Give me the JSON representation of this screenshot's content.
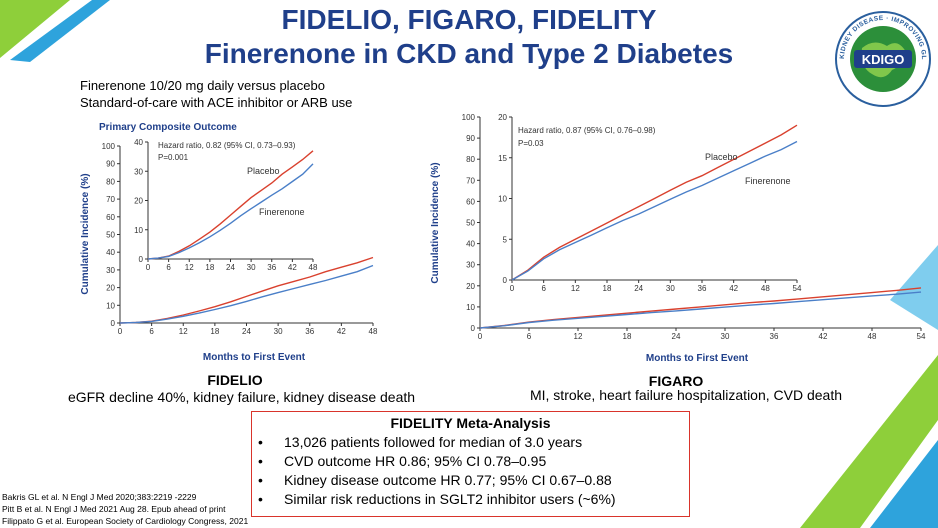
{
  "header": {
    "title_line1": "FIDELIO, FIGARO, FIDELITY",
    "title_line2": "Finerenone in CKD and Type 2 Diabetes",
    "intro_line1": "Finerenone 10/20 mg daily versus placebo",
    "intro_line2": "Standard-of-care with ACE inhibitor or ARB use"
  },
  "logo": {
    "text": "KDIGO",
    "ring_text": "KIDNEY DISEASE · IMPROVING GLOBAL OUTCOMES"
  },
  "colors": {
    "title": "#1f3f8a",
    "placebo": "#d9412e",
    "finerenone": "#4a7fc8",
    "box_border": "#d9342b",
    "deco_green": "#8ecf3a",
    "deco_blue": "#2ea3dc"
  },
  "fidelio": {
    "label": "FIDELIO",
    "description": "eGFR decline 40%, kidney failure, kidney disease death"
  },
  "figaro": {
    "label": "FIGARO",
    "description": "MI, stroke, heart failure hospitalization, CVD death"
  },
  "meta": {
    "title": "FIDELITY Meta-Analysis",
    "bullet_symbol": "•",
    "bullets": [
      "13,026 patients followed for median of 3.0 years",
      "CVD outcome HR 0.86; 95% CI 0.78–0.95",
      "Kidney disease outcome HR 0.77; 95% CI 0.67–0.88",
      "Similar risk reductions in SGLT2 inhibitor users (~6%)"
    ]
  },
  "references": [
    "Bakris GL et al. N Engl J Med 2020;383:2219 -2229",
    "Pitt B et al. N Engl J Med 2021 Aug 28. Epub ahead of print",
    "Filippato G et al. European Society of Cardiology Congress, 2021"
  ],
  "chart_data": [
    {
      "id": "fidelio",
      "type": "line",
      "title": "Primary Composite Outcome",
      "xlabel": "Months to First Event",
      "ylabel": "Cumulative Incidence (%)",
      "xlim": [
        0,
        48
      ],
      "ylim": [
        0,
        100
      ],
      "xticks": [
        0,
        6,
        12,
        18,
        24,
        30,
        36,
        42,
        48
      ],
      "yticks": [
        0,
        10,
        20,
        30,
        40,
        50,
        60,
        70,
        80,
        90,
        100
      ],
      "series": [
        {
          "name": "Placebo",
          "x": [
            0,
            3,
            6,
            9,
            12,
            15,
            18,
            21,
            24,
            27,
            30,
            33,
            36,
            39,
            42,
            45,
            48
          ],
          "values": [
            0,
            0.3,
            1.0,
            2.6,
            4.5,
            6.8,
            9.2,
            12.0,
            15.0,
            18.0,
            21.0,
            23.5,
            26.0,
            29.0,
            31.5,
            34.0,
            37.0
          ]
        },
        {
          "name": "Finerenone",
          "x": [
            0,
            3,
            6,
            9,
            12,
            15,
            18,
            21,
            24,
            27,
            30,
            33,
            36,
            39,
            42,
            45,
            48
          ],
          "values": [
            0,
            0.3,
            0.9,
            2.2,
            3.8,
            5.6,
            7.6,
            9.8,
            12.2,
            14.8,
            17.2,
            19.5,
            21.8,
            24.0,
            26.5,
            29.0,
            32.5
          ]
        }
      ],
      "inset": {
        "ylim": [
          0,
          40
        ],
        "yticks": [
          0,
          10,
          20,
          30,
          40
        ],
        "xticks": [
          0,
          6,
          12,
          18,
          24,
          30,
          36,
          42,
          48
        ],
        "annotation_line1": "Hazard ratio, 0.82 (95% CI, 0.73–0.93)",
        "annotation_line2": "P=0.001"
      }
    },
    {
      "id": "figaro",
      "type": "line",
      "xlabel": "Months to First Event",
      "ylabel": "Cumulative Incidence (%)",
      "xlim": [
        0,
        54
      ],
      "ylim": [
        0,
        100
      ],
      "xticks": [
        0,
        6,
        12,
        18,
        24,
        30,
        36,
        42,
        48,
        54
      ],
      "yticks": [
        0,
        10,
        20,
        30,
        40,
        50,
        60,
        70,
        80,
        90,
        100
      ],
      "series": [
        {
          "name": "Placebo",
          "x": [
            0,
            3,
            6,
            9,
            12,
            15,
            18,
            21,
            24,
            27,
            30,
            33,
            36,
            39,
            42,
            45,
            48,
            51,
            54
          ],
          "values": [
            0,
            1.2,
            2.8,
            4.0,
            5.0,
            6.0,
            7.0,
            8.0,
            9.0,
            10.0,
            11.0,
            12.0,
            12.8,
            13.8,
            14.8,
            15.8,
            16.8,
            17.8,
            19.0
          ]
        },
        {
          "name": "Finerenone",
          "x": [
            0,
            3,
            6,
            9,
            12,
            15,
            18,
            21,
            24,
            27,
            30,
            33,
            36,
            39,
            42,
            45,
            48,
            51,
            54
          ],
          "values": [
            0,
            1.1,
            2.6,
            3.7,
            4.6,
            5.5,
            6.4,
            7.3,
            8.1,
            9.0,
            9.9,
            10.8,
            11.6,
            12.5,
            13.4,
            14.3,
            15.2,
            16.0,
            17.0
          ]
        }
      ],
      "inset": {
        "ylim": [
          0,
          20
        ],
        "yticks": [
          0,
          5,
          10,
          15,
          20
        ],
        "xticks": [
          0,
          6,
          12,
          18,
          24,
          30,
          36,
          42,
          48,
          54
        ],
        "annotation_line1": "Hazard ratio, 0.87 (95% CI, 0.76–0.98)",
        "annotation_line2": "P=0.03"
      }
    }
  ]
}
